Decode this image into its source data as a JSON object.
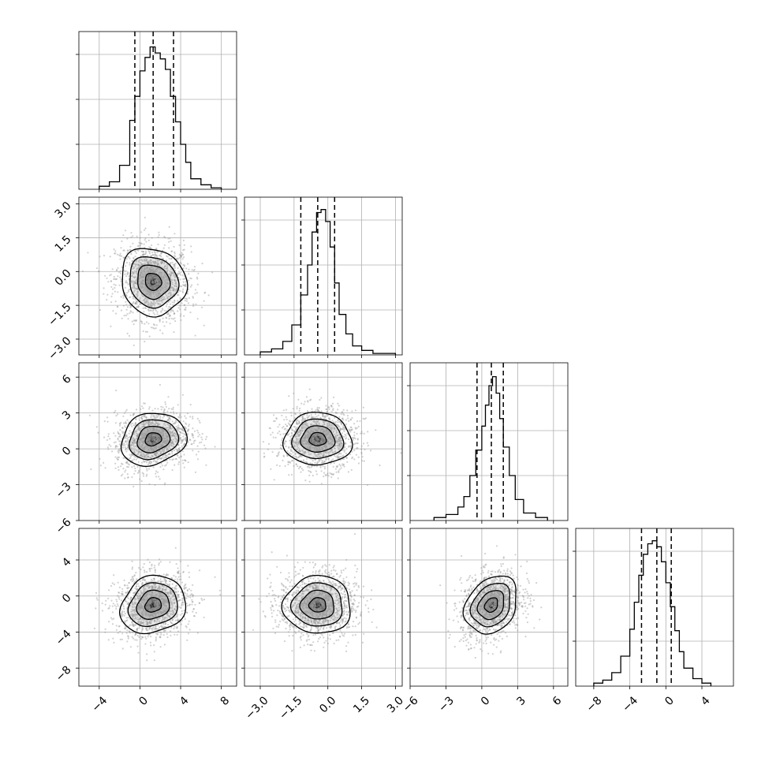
{
  "chart_data": {
    "type": "corner",
    "n_params": 4,
    "grid": true,
    "quantile_lines": "dashed",
    "params": [
      {
        "range": [
          -6.0,
          9.5
        ],
        "ticks": [
          -4,
          0,
          4,
          8
        ],
        "tick_labels": [
          "−4",
          "0",
          "4",
          "8"
        ],
        "quantiles": [
          -0.5,
          1.3,
          3.3
        ],
        "mean": 1.3,
        "sd": 1.6
      },
      {
        "range": [
          -3.7,
          3.3
        ],
        "ticks": [
          -3.0,
          -1.5,
          0.0,
          1.5,
          3.0
        ],
        "tick_labels": [
          "−3.0",
          "−1.5",
          "0.0",
          "1.5",
          "3.0"
        ],
        "quantiles": [
          -1.2,
          -0.45,
          0.3
        ],
        "mean": -0.45,
        "sd": 0.75
      },
      {
        "range": [
          -6.0,
          7.2
        ],
        "ticks": [
          -6,
          -3,
          0,
          3,
          6
        ],
        "tick_labels": [
          "−6",
          "−3",
          "0",
          "3",
          "6"
        ],
        "quantiles": [
          -0.4,
          0.8,
          1.8
        ],
        "mean": 0.8,
        "sd": 1.1
      },
      {
        "range": [
          -10.0,
          7.5
        ],
        "ticks": [
          -8,
          -4,
          0,
          4
        ],
        "tick_labels": [
          "−8",
          "−4",
          "0",
          "4"
        ],
        "quantiles": [
          -2.7,
          -1.0,
          0.6
        ],
        "mean": -1.0,
        "sd": 1.6
      }
    ],
    "histograms": [
      {
        "param": 0,
        "ylim": [
          0,
          1.0
        ],
        "bins": [
          -4.0,
          -3.0,
          -2.0,
          -1.0,
          -0.5,
          0.0,
          0.5,
          1.0,
          1.5,
          2.0,
          2.5,
          3.0,
          3.5,
          4.0,
          4.5,
          5.0,
          6.0,
          7.0
        ],
        "counts": [
          0.02,
          0.05,
          0.16,
          0.46,
          0.62,
          0.79,
          0.88,
          0.95,
          0.91,
          0.87,
          0.8,
          0.62,
          0.45,
          0.3,
          0.18,
          0.07,
          0.03,
          0.01
        ]
      },
      {
        "param": 1,
        "ylim": [
          0,
          1.0
        ],
        "bins": [
          -3.0,
          -2.5,
          -2.0,
          -1.6,
          -1.2,
          -0.9,
          -0.7,
          -0.5,
          -0.3,
          -0.1,
          0.1,
          0.3,
          0.5,
          0.8,
          1.1,
          1.5,
          2.0,
          2.5
        ],
        "counts": [
          0.02,
          0.04,
          0.09,
          0.2,
          0.4,
          0.6,
          0.82,
          0.95,
          0.97,
          0.89,
          0.72,
          0.48,
          0.27,
          0.14,
          0.06,
          0.03,
          0.01,
          0.01
        ]
      },
      {
        "param": 2,
        "ylim": [
          0,
          1.0
        ],
        "bins": [
          -4.0,
          -3.0,
          -2.0,
          -1.5,
          -1.0,
          -0.5,
          0.0,
          0.3,
          0.6,
          0.9,
          1.2,
          1.5,
          1.8,
          2.3,
          2.8,
          3.5,
          4.5
        ],
        "counts": [
          0.02,
          0.04,
          0.09,
          0.16,
          0.3,
          0.47,
          0.63,
          0.77,
          0.9,
          0.96,
          0.85,
          0.68,
          0.49,
          0.3,
          0.14,
          0.05,
          0.02
        ]
      },
      {
        "param": 3,
        "ylim": [
          0,
          1.0
        ],
        "bins": [
          -8.0,
          -7.0,
          -6.0,
          -5.0,
          -4.0,
          -3.5,
          -3.0,
          -2.5,
          -2.0,
          -1.5,
          -1.0,
          -0.5,
          0.0,
          0.5,
          1.0,
          1.5,
          2.0,
          3.0,
          4.0
        ],
        "counts": [
          0.02,
          0.04,
          0.09,
          0.2,
          0.38,
          0.56,
          0.74,
          0.88,
          0.95,
          0.97,
          0.93,
          0.83,
          0.69,
          0.53,
          0.37,
          0.23,
          0.12,
          0.05,
          0.02
        ]
      }
    ],
    "pairs": [
      {
        "x": 0,
        "y": 1,
        "mean": [
          1.3,
          -0.45
        ],
        "corr": -0.1
      },
      {
        "x": 0,
        "y": 2,
        "mean": [
          1.3,
          0.8
        ],
        "corr": 0.15
      },
      {
        "x": 1,
        "y": 2,
        "mean": [
          -0.45,
          0.8
        ],
        "corr": 0.0
      },
      {
        "x": 0,
        "y": 3,
        "mean": [
          1.3,
          -1.0
        ],
        "corr": 0.15
      },
      {
        "x": 1,
        "y": 3,
        "mean": [
          -0.45,
          -1.0
        ],
        "corr": 0.0
      },
      {
        "x": 2,
        "y": 3,
        "mean": [
          0.8,
          -1.0
        ],
        "corr": 0.25
      }
    ],
    "contour_levels_sigma": [
      0.5,
      1.0,
      1.5,
      2.0
    ],
    "colors": {
      "line": "#000000",
      "grid": "#b0b0b0",
      "scatter": "#9a9a9a"
    }
  }
}
